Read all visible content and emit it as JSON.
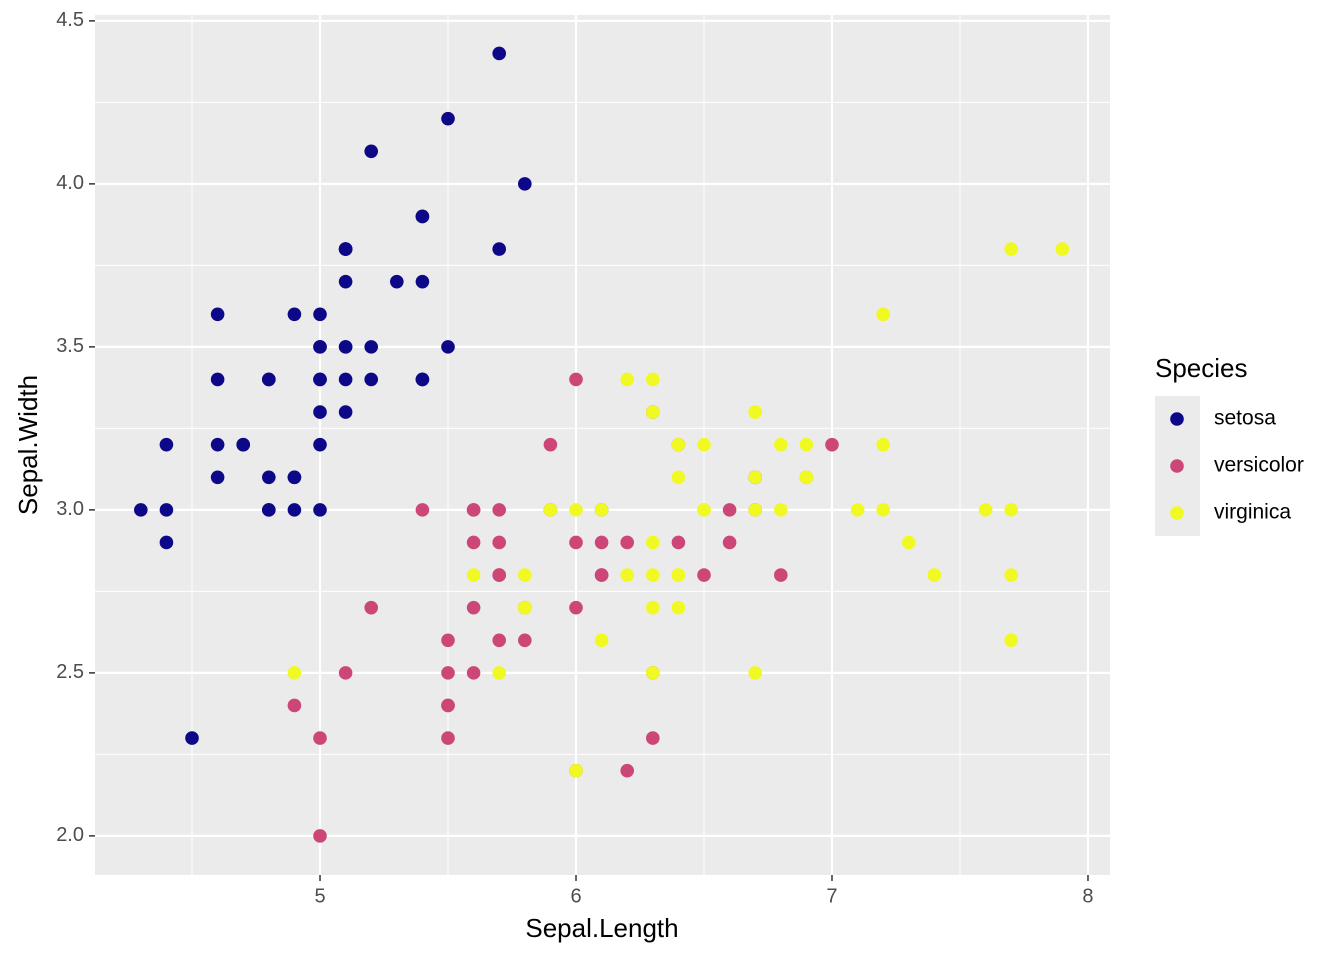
{
  "chart_data": {
    "type": "scatter",
    "x_label": "Sepal.Length",
    "y_label": "Sepal.Width",
    "legend_title": "Species",
    "legend_position": "right",
    "grid": true,
    "xlim": [
      4.121,
      8.086
    ],
    "ylim": [
      1.88,
      4.518
    ],
    "xticks": [
      5,
      6,
      7,
      8
    ],
    "yticks": [
      {
        "value": 2.0,
        "label": "2.0"
      },
      2.5,
      {
        "value": 3.0,
        "label": "3.0"
      },
      3.5,
      {
        "value": 4.0,
        "label": "4.0"
      },
      4.5
    ],
    "x_minor_ticks": [
      4.5,
      5.5,
      6.5,
      7.5
    ],
    "y_minor_ticks": [
      2.25,
      2.75,
      3.25,
      3.75,
      4.25
    ],
    "series": [
      {
        "name": "setosa",
        "color": "#0d0887",
        "x": [
          5.1,
          4.9,
          4.7,
          4.6,
          5.0,
          5.4,
          4.6,
          5.0,
          4.4,
          4.9,
          5.4,
          4.8,
          4.8,
          4.3,
          5.8,
          5.7,
          5.4,
          5.1,
          5.7,
          5.1,
          5.4,
          5.1,
          4.6,
          5.1,
          4.8,
          5.0,
          5.0,
          5.2,
          5.2,
          4.7,
          4.8,
          5.4,
          5.2,
          5.5,
          4.9,
          5.0,
          5.5,
          4.9,
          4.4,
          5.1,
          5.0,
          4.5,
          4.4,
          5.0,
          5.1,
          4.8,
          5.1,
          4.6,
          5.3,
          5.0
        ],
        "values": [
          3.5,
          3.0,
          3.2,
          3.1,
          3.6,
          3.9,
          3.4,
          3.4,
          2.9,
          3.1,
          3.7,
          3.4,
          3.0,
          3.0,
          4.0,
          4.4,
          3.9,
          3.5,
          3.8,
          3.8,
          3.4,
          3.7,
          3.6,
          3.3,
          3.4,
          3.0,
          3.4,
          3.5,
          3.4,
          3.2,
          3.1,
          3.4,
          4.1,
          4.2,
          3.1,
          3.2,
          3.5,
          3.6,
          3.0,
          3.4,
          3.5,
          2.3,
          3.2,
          3.5,
          3.8,
          3.0,
          3.8,
          3.2,
          3.7,
          3.3
        ]
      },
      {
        "name": "versicolor",
        "color": "#cc4778",
        "x": [
          7.0,
          6.4,
          6.9,
          5.5,
          6.5,
          5.7,
          6.3,
          4.9,
          6.6,
          5.2,
          5.0,
          5.9,
          6.0,
          6.1,
          5.6,
          6.7,
          5.6,
          5.8,
          6.2,
          5.6,
          5.9,
          6.1,
          6.3,
          6.1,
          6.4,
          6.6,
          6.8,
          6.7,
          6.0,
          5.7,
          5.5,
          5.5,
          5.8,
          6.0,
          5.4,
          6.0,
          6.7,
          6.3,
          5.6,
          5.5,
          5.5,
          6.1,
          5.8,
          5.0,
          5.6,
          5.7,
          5.7,
          6.2,
          5.1,
          5.7
        ],
        "values": [
          3.2,
          3.2,
          3.1,
          2.3,
          2.8,
          2.8,
          3.3,
          2.4,
          2.9,
          2.7,
          2.0,
          3.0,
          2.2,
          2.9,
          2.9,
          3.1,
          3.0,
          2.7,
          2.2,
          2.5,
          3.2,
          2.8,
          2.5,
          2.8,
          2.9,
          3.0,
          2.8,
          3.0,
          2.9,
          2.6,
          2.4,
          2.4,
          2.7,
          2.7,
          3.0,
          3.4,
          3.1,
          2.3,
          3.0,
          2.5,
          2.6,
          3.0,
          2.6,
          2.3,
          2.7,
          3.0,
          2.9,
          2.9,
          2.5,
          2.8
        ]
      },
      {
        "name": "virginica",
        "color": "#f0f921",
        "x": [
          6.3,
          5.8,
          7.1,
          6.3,
          6.5,
          7.6,
          4.9,
          7.3,
          6.7,
          7.2,
          6.5,
          6.4,
          6.8,
          5.7,
          5.8,
          6.4,
          6.5,
          7.7,
          7.7,
          6.0,
          6.9,
          5.6,
          7.7,
          6.3,
          6.7,
          7.2,
          6.2,
          6.1,
          6.4,
          7.2,
          7.4,
          7.9,
          6.4,
          6.3,
          6.1,
          7.7,
          6.3,
          6.4,
          6.0,
          6.9,
          6.7,
          6.9,
          5.8,
          6.8,
          6.7,
          6.7,
          6.3,
          6.5,
          6.2,
          5.9
        ],
        "values": [
          3.3,
          2.7,
          3.0,
          2.9,
          3.0,
          3.0,
          2.5,
          2.9,
          2.5,
          3.6,
          3.2,
          2.7,
          3.0,
          2.5,
          2.8,
          3.2,
          3.0,
          3.8,
          2.6,
          2.2,
          3.2,
          2.8,
          2.8,
          2.7,
          3.3,
          3.2,
          2.8,
          3.0,
          2.8,
          3.0,
          2.8,
          3.8,
          2.8,
          2.8,
          2.6,
          3.0,
          3.4,
          3.1,
          3.0,
          3.1,
          3.1,
          3.1,
          2.7,
          3.2,
          3.3,
          3.0,
          2.5,
          3.0,
          3.4,
          3.0
        ]
      }
    ]
  }
}
